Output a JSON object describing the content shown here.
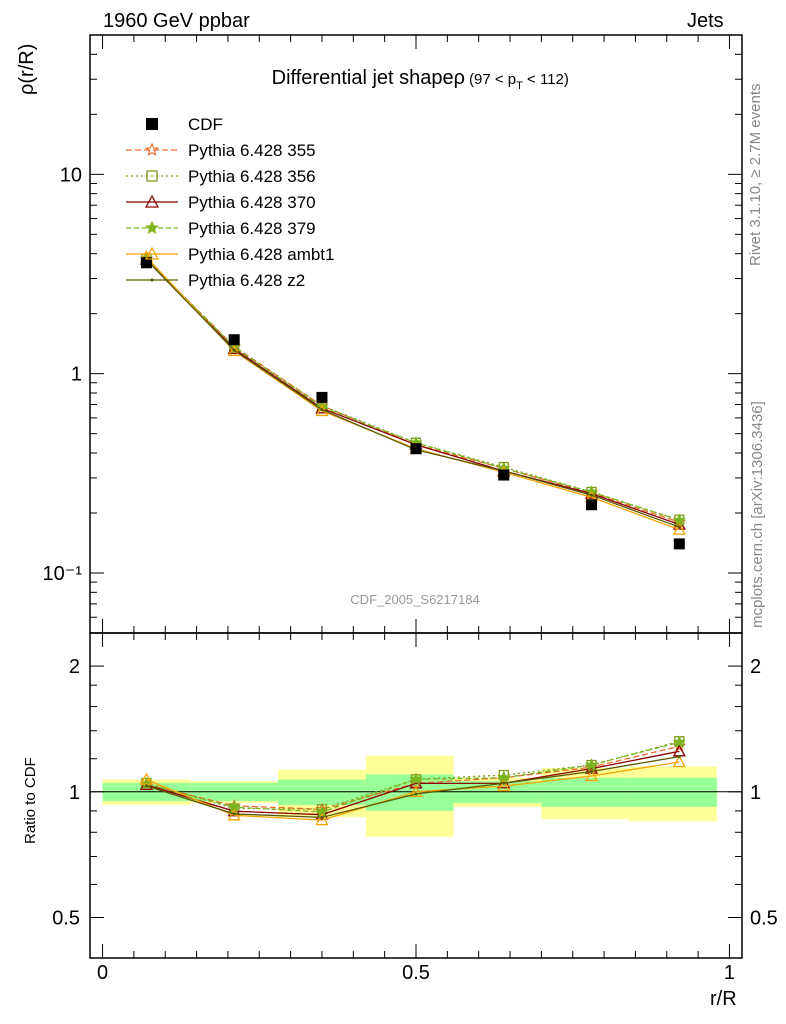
{
  "header": {
    "left": "1960 GeV ppbar",
    "right": "Jets"
  },
  "side_labels": {
    "rivet": "Rivet 3.1.10, ≥ 2.7M events",
    "source": "mcplots.cern.ch [arXiv:1306.3436]"
  },
  "chart_data": {
    "type": "line",
    "title_main": "Differential jet shapeρ",
    "title_range_pre": "(97 < p",
    "title_range_sub": "T",
    "title_range_post": " < 112)",
    "analysis_label": "CDF_2005_S6217184",
    "xlabel": "r/R",
    "ylabel": "ρ(r/R)",
    "ratio_ylabel": "Ratio to CDF",
    "log_y": true,
    "xlim": [
      -0.02,
      1.02
    ],
    "ylim": [
      0.05,
      50
    ],
    "ratio_ylim": [
      0.4,
      2.4
    ],
    "x_ticks": [
      "0",
      "0.5",
      "1"
    ],
    "y_ticks": [
      "10⁻¹",
      "1",
      "10"
    ],
    "ratio_ticks": [
      "0.5",
      "1",
      "2"
    ],
    "x": [
      0.07,
      0.21,
      0.35,
      0.5,
      0.64,
      0.78,
      0.92
    ],
    "bin_edges": [
      0.0,
      0.14,
      0.28,
      0.42,
      0.56,
      0.7,
      0.84,
      0.98
    ],
    "data": {
      "name": "CDF",
      "values": [
        3.6,
        1.48,
        0.76,
        0.42,
        0.31,
        0.22,
        0.14
      ]
    },
    "uncert_green": [
      0.05,
      0.05,
      0.07,
      0.1,
      0.06,
      0.08,
      0.08
    ],
    "uncert_yellow": [
      0.07,
      0.06,
      0.13,
      0.22,
      0.08,
      0.14,
      0.15
    ],
    "series": [
      {
        "name": "Pythia 6.428 355",
        "color": "#ee6a2c",
        "dash": "6,3",
        "marker": "star-open",
        "values": [
          3.75,
          1.37,
          0.69,
          0.44,
          0.335,
          0.252,
          0.18
        ]
      },
      {
        "name": "Pythia 6.428 356",
        "color": "#7f9e1a",
        "dash": "2,3",
        "marker": "square-open",
        "values": [
          3.78,
          1.35,
          0.69,
          0.45,
          0.34,
          0.255,
          0.185
        ]
      },
      {
        "name": "Pythia 6.428 370",
        "color": "#8b0000",
        "dash": "",
        "marker": "triangle-open",
        "values": [
          3.74,
          1.33,
          0.67,
          0.44,
          0.325,
          0.25,
          0.175
        ]
      },
      {
        "name": "Pythia 6.428 379",
        "color": "#7ab51d",
        "dash": "5,3",
        "marker": "star",
        "values": [
          3.76,
          1.36,
          0.68,
          0.45,
          0.335,
          0.255,
          0.184
        ]
      },
      {
        "name": "Pythia 6.428 ambt1",
        "color": "#f5a300",
        "dash": "",
        "marker": "triangle-open",
        "values": [
          3.85,
          1.3,
          0.65,
          0.42,
          0.32,
          0.24,
          0.165
        ]
      },
      {
        "name": "Pythia 6.428 z2",
        "color": "#5a5a00",
        "dash": "",
        "marker": "dot",
        "values": [
          3.72,
          1.31,
          0.66,
          0.415,
          0.325,
          0.246,
          0.17
        ]
      }
    ]
  }
}
